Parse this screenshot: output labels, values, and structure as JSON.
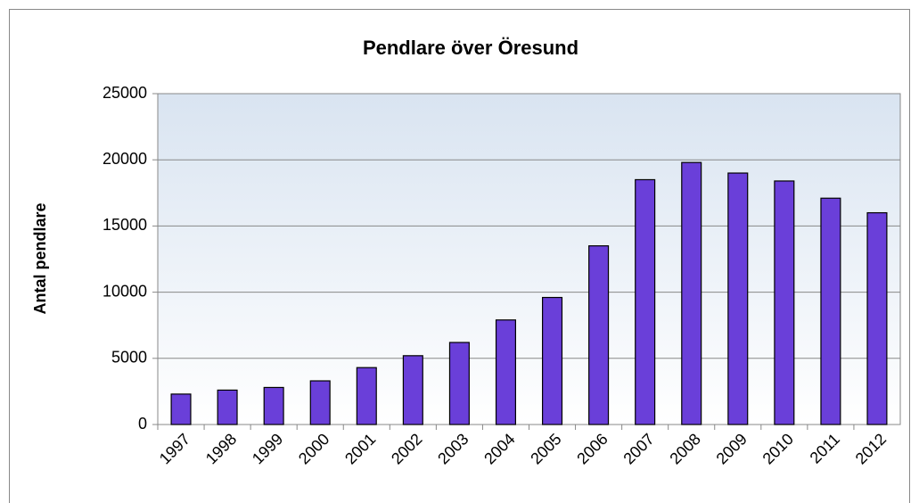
{
  "chart_data": {
    "type": "bar",
    "title": "Pendlare över Öresund",
    "y_label": "Antal pendlare",
    "categories": [
      "1997",
      "1998",
      "1999",
      "2000",
      "2001",
      "2002",
      "2003",
      "2004",
      "2005",
      "2006",
      "2007",
      "2008",
      "2009",
      "2010",
      "2011",
      "2012"
    ],
    "values": [
      2300,
      2600,
      2800,
      3300,
      4300,
      5200,
      6200,
      7900,
      9600,
      13500,
      18500,
      19800,
      19000,
      18400,
      17100,
      16000
    ],
    "color": "#6a3fd9",
    "ylim": [
      0,
      25000
    ],
    "yticks": [
      0,
      5000,
      10000,
      15000,
      20000,
      25000
    ],
    "grid": true
  }
}
